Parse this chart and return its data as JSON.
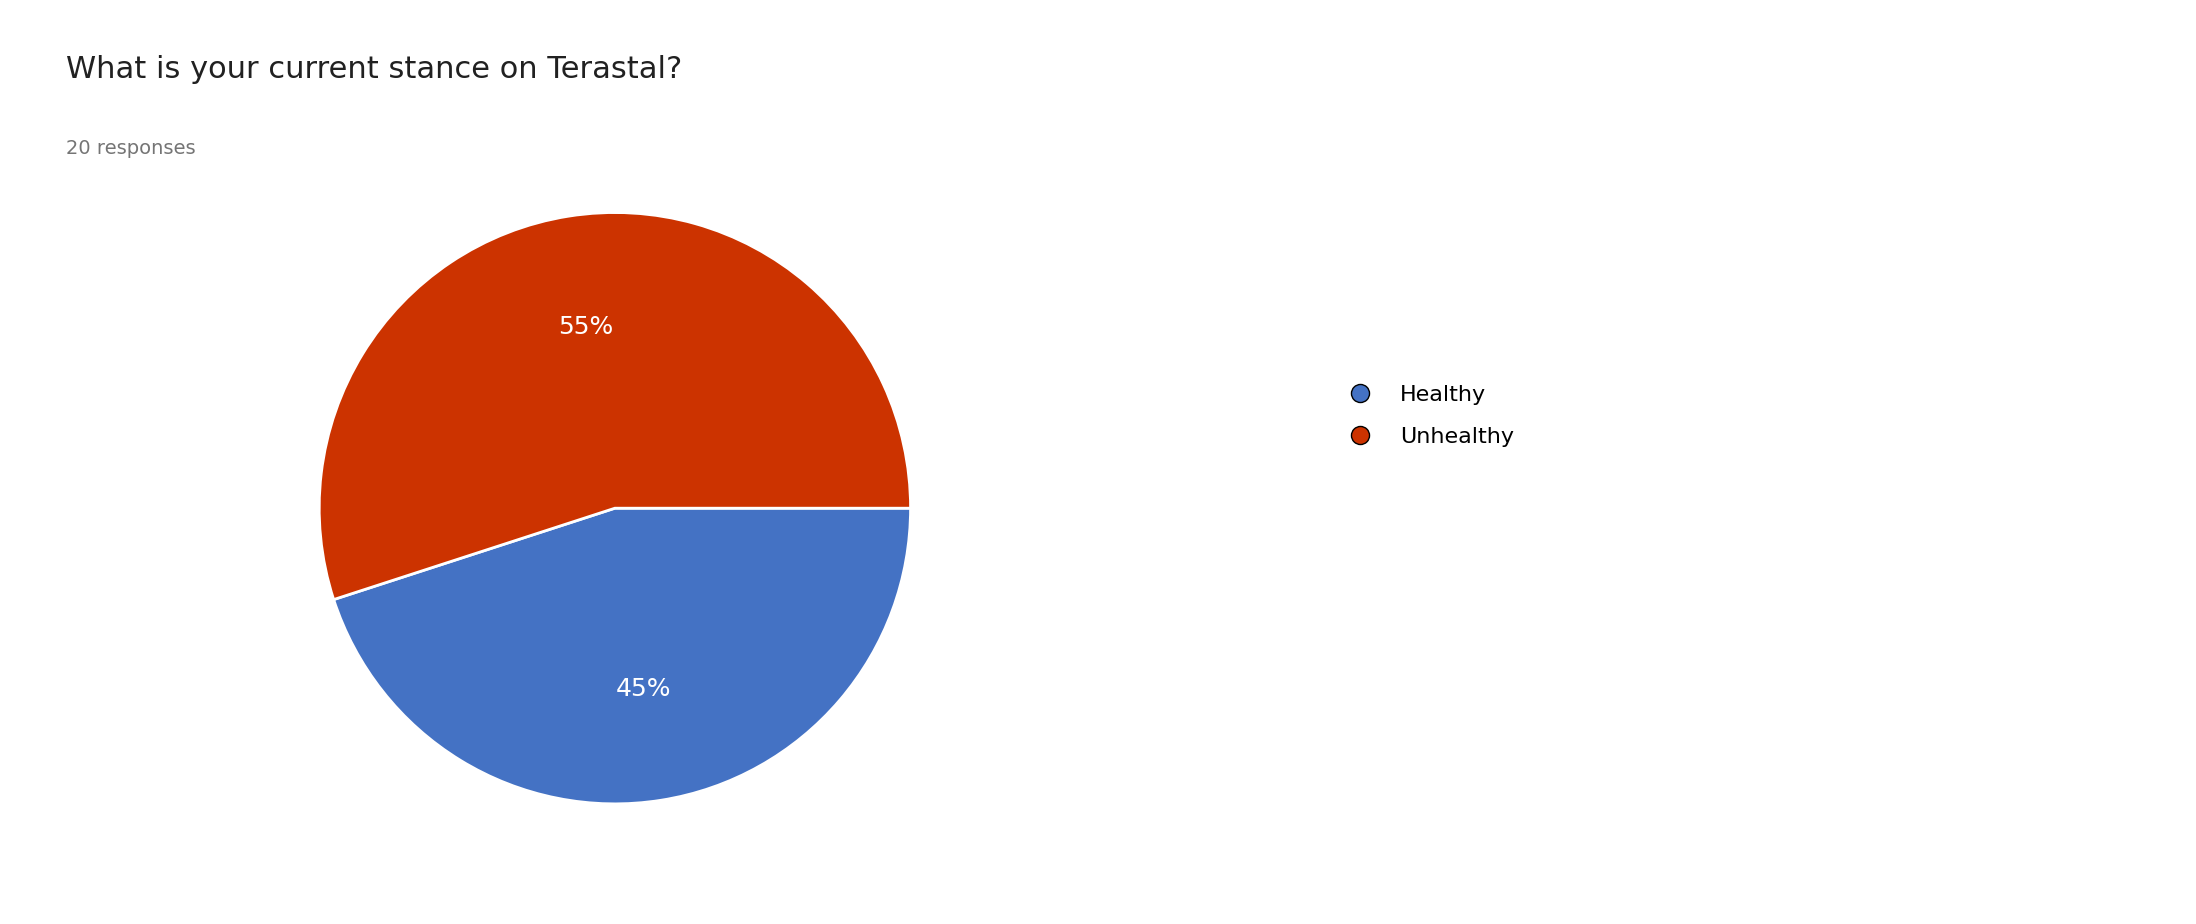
{
  "title": "What is your current stance on Terastal?",
  "subtitle": "20 responses",
  "labels": [
    "Healthy",
    "Unhealthy"
  ],
  "values": [
    45,
    55
  ],
  "colors": [
    "#4472C4",
    "#CC3300"
  ],
  "pct_labels": [
    "45%",
    "55%"
  ],
  "legend_labels": [
    "Healthy",
    "Unhealthy"
  ],
  "background_color": "#ffffff",
  "title_fontsize": 22,
  "subtitle_fontsize": 14,
  "pct_fontsize": 18,
  "legend_fontsize": 16,
  "start_angle": 198
}
